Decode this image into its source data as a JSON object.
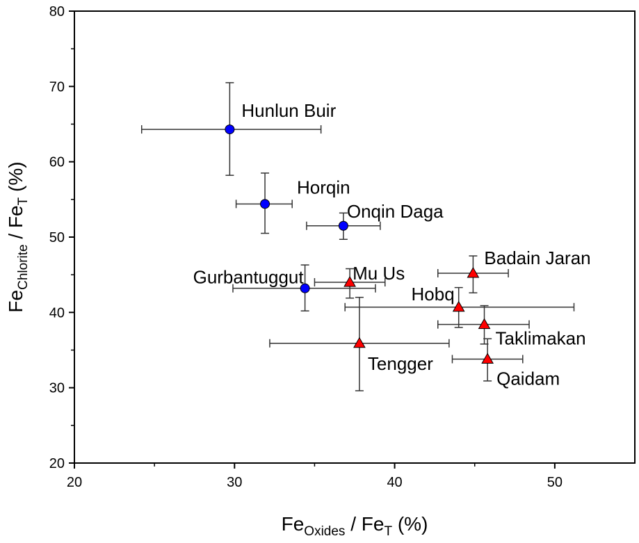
{
  "chart_data": {
    "type": "scatter",
    "title": "",
    "xlabel": {
      "parts": [
        {
          "t": "Fe"
        },
        {
          "t": "Oxides",
          "sub": true
        },
        {
          "t": " / Fe"
        },
        {
          "t": "T",
          "sub": true
        },
        {
          "t": " (%)"
        }
      ]
    },
    "ylabel": {
      "parts": [
        {
          "t": "Fe"
        },
        {
          "t": "Chlorite",
          "sub": true
        },
        {
          "t": " / Fe"
        },
        {
          "t": "T",
          "sub": true
        },
        {
          "t": " (%)"
        }
      ]
    },
    "xlim": [
      20,
      55
    ],
    "ylim": [
      20,
      80
    ],
    "xticks": [
      "20",
      "30",
      "40",
      "50"
    ],
    "yticks": [
      "20",
      "30",
      "40",
      "50",
      "60",
      "70",
      "80"
    ],
    "grid": false,
    "colors": {
      "circle": "#0000ff",
      "triangle": "#ff0000",
      "errorbar": "#333333"
    },
    "series": [
      {
        "marker": "circle",
        "points": [
          {
            "label": "Hunlun Buir",
            "x": 29.7,
            "y": 64.3,
            "xerr": [
              24.2,
              35.4
            ],
            "yerr": [
              58.2,
              70.5
            ]
          },
          {
            "label": "Horqin",
            "x": 31.9,
            "y": 54.4,
            "xerr": [
              30.1,
              33.6
            ],
            "yerr": [
              50.5,
              58.5
            ]
          },
          {
            "label": "Onqin Daga",
            "x": 36.8,
            "y": 51.5,
            "xerr": [
              34.5,
              39.1
            ],
            "yerr": [
              49.7,
              53.2
            ]
          },
          {
            "label": "Gurbantuggut",
            "x": 34.4,
            "y": 43.2,
            "xerr": [
              29.9,
              38.8
            ],
            "yerr": [
              40.2,
              46.3
            ]
          }
        ]
      },
      {
        "marker": "triangle",
        "points": [
          {
            "label": "Mu Us",
            "x": 37.2,
            "y": 44.0,
            "xerr": [
              35.0,
              39.4
            ],
            "yerr": [
              41.9,
              45.8
            ]
          },
          {
            "label": "Badain Jaran",
            "x": 44.9,
            "y": 45.2,
            "xerr": [
              42.7,
              47.1
            ],
            "yerr": [
              42.6,
              47.5
            ]
          },
          {
            "label": "Hobq",
            "x": 44.0,
            "y": 40.7,
            "xerr": [
              36.9,
              51.2
            ],
            "yerr": [
              38.0,
              43.3
            ]
          },
          {
            "label": "Taklimakan",
            "x": 45.6,
            "y": 38.4,
            "xerr": [
              42.7,
              48.4
            ],
            "yerr": [
              35.8,
              40.9
            ]
          },
          {
            "label": "Tengger",
            "x": 37.8,
            "y": 35.9,
            "xerr": [
              32.2,
              43.4
            ],
            "yerr": [
              29.6,
              42.0
            ]
          },
          {
            "label": "Qaidam",
            "x": 45.8,
            "y": 33.8,
            "xerr": [
              43.6,
              48.0
            ],
            "yerr": [
              30.9,
              36.5
            ]
          }
        ]
      }
    ]
  }
}
